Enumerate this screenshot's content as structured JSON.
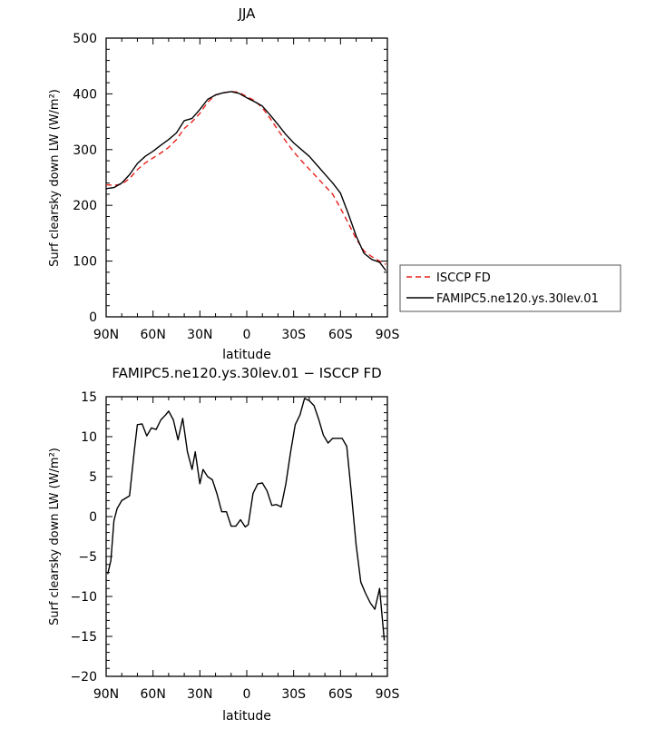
{
  "chart_data": [
    {
      "type": "line",
      "title": "JJA",
      "xlabel": "latitude",
      "ylabel": "Surf clearsky down LW (W/m²)",
      "xlim": [
        90,
        -90
      ],
      "ylim": [
        0,
        500
      ],
      "x_ticks": [
        90,
        60,
        30,
        0,
        -30,
        -60,
        -90
      ],
      "x_tick_labels": [
        "90N",
        "60N",
        "30N",
        "0",
        "30S",
        "60S",
        "90S"
      ],
      "y_ticks": [
        0,
        100,
        200,
        300,
        400,
        500
      ],
      "y_tick_labels": [
        "0",
        "100",
        "200",
        "300",
        "400",
        "500"
      ],
      "legend_position": "right",
      "colors": {
        "ISCCP FD": "#e8211c",
        "FAMIPC5.ne120.ys.30lev.01": "#000000"
      },
      "series": [
        {
          "name": "ISCCP FD",
          "style": "dashed",
          "color": "#e8211c",
          "x": [
            90,
            85,
            80,
            75,
            70,
            65,
            60,
            55,
            50,
            45,
            40,
            35,
            30,
            25,
            20,
            15,
            10,
            5,
            0,
            -5,
            -10,
            -15,
            -20,
            -25,
            -30,
            -35,
            -40,
            -45,
            -50,
            -55,
            -60,
            -65,
            -70,
            -75,
            -80,
            -85,
            -89
          ],
          "y": [
            237,
            236,
            238,
            248,
            264,
            276,
            285,
            294,
            304,
            318,
            338,
            350,
            365,
            385,
            398,
            402,
            404,
            403,
            395,
            388,
            375,
            356,
            335,
            315,
            296,
            280,
            265,
            250,
            235,
            220,
            195,
            168,
            140,
            118,
            108,
            100,
            94
          ]
        },
        {
          "name": "FAMIPC5.ne120.ys.30lev.01",
          "style": "solid",
          "color": "#000000",
          "x": [
            90,
            85,
            80,
            75,
            70,
            65,
            60,
            55,
            50,
            45,
            40,
            35,
            30,
            25,
            20,
            15,
            10,
            5,
            0,
            -5,
            -10,
            -15,
            -20,
            -25,
            -30,
            -35,
            -40,
            -45,
            -50,
            -55,
            -60,
            -65,
            -70,
            -75,
            -80,
            -85,
            -89
          ],
          "y": [
            230,
            232,
            240,
            255,
            275,
            288,
            297,
            308,
            318,
            330,
            352,
            356,
            372,
            390,
            398,
            402,
            404,
            401,
            393,
            386,
            378,
            362,
            345,
            327,
            312,
            300,
            288,
            272,
            256,
            240,
            222,
            185,
            145,
            114,
            103,
            98,
            83
          ]
        }
      ]
    },
    {
      "type": "line",
      "title": "FAMIPC5.ne120.ys.30lev.01 − ISCCP FD",
      "xlabel": "latitude",
      "ylabel": "Surf clearsky down LW (W/m²)",
      "xlim": [
        90,
        -90
      ],
      "ylim": [
        -20,
        15
      ],
      "x_ticks": [
        90,
        60,
        30,
        0,
        -30,
        -60,
        -90
      ],
      "x_tick_labels": [
        "90N",
        "60N",
        "30N",
        "0",
        "30S",
        "60S",
        "90S"
      ],
      "y_ticks": [
        -20,
        -15,
        -10,
        -5,
        0,
        5,
        10,
        15
      ],
      "y_tick_labels": [
        "−20",
        "−15",
        "−10",
        "−5",
        "0",
        "5",
        "10",
        "15"
      ],
      "series": [
        {
          "style": "solid",
          "color": "#000000",
          "x": [
            89,
            87,
            85,
            83,
            80,
            75,
            72,
            70,
            67,
            64,
            61,
            58,
            55,
            52,
            50,
            47,
            44,
            41,
            38,
            35,
            33,
            30,
            28,
            25,
            22,
            19,
            16,
            13,
            10,
            7,
            4,
            1,
            -1,
            -4,
            -7,
            -10,
            -13,
            -16,
            -19,
            -22,
            -25,
            -28,
            -31,
            -34,
            -37,
            -40,
            -43,
            -46,
            -49,
            -52,
            -55,
            -58,
            -61,
            -64,
            -67,
            -70,
            -73,
            -76,
            -79,
            -82,
            -85,
            -88
          ],
          "y": [
            -7.2,
            -5.5,
            -0.5,
            1.0,
            2.0,
            2.6,
            8.2,
            11.5,
            11.6,
            10.1,
            11.1,
            10.9,
            12.1,
            12.7,
            13.2,
            12.1,
            9.6,
            12.3,
            8.1,
            5.9,
            8.1,
            4.1,
            5.9,
            5.0,
            4.6,
            2.8,
            0.6,
            0.6,
            -1.2,
            -1.2,
            -0.4,
            -1.3,
            -1.0,
            2.9,
            4.1,
            4.2,
            3.2,
            1.4,
            1.5,
            1.2,
            4.1,
            8.0,
            11.5,
            12.7,
            14.8,
            14.5,
            13.9,
            12.2,
            10.2,
            9.2,
            9.8,
            9.8,
            9.8,
            8.8,
            2.8,
            -3.6,
            -8.2,
            -9.6,
            -10.8,
            -11.6,
            -9.0,
            -15.5
          ]
        }
      ]
    }
  ],
  "legend": [
    {
      "label": "ISCCP FD",
      "style": "dashed",
      "color": "#e8211c"
    },
    {
      "label": "FAMIPC5.ne120.ys.30lev.01",
      "style": "solid",
      "color": "#000000"
    }
  ]
}
